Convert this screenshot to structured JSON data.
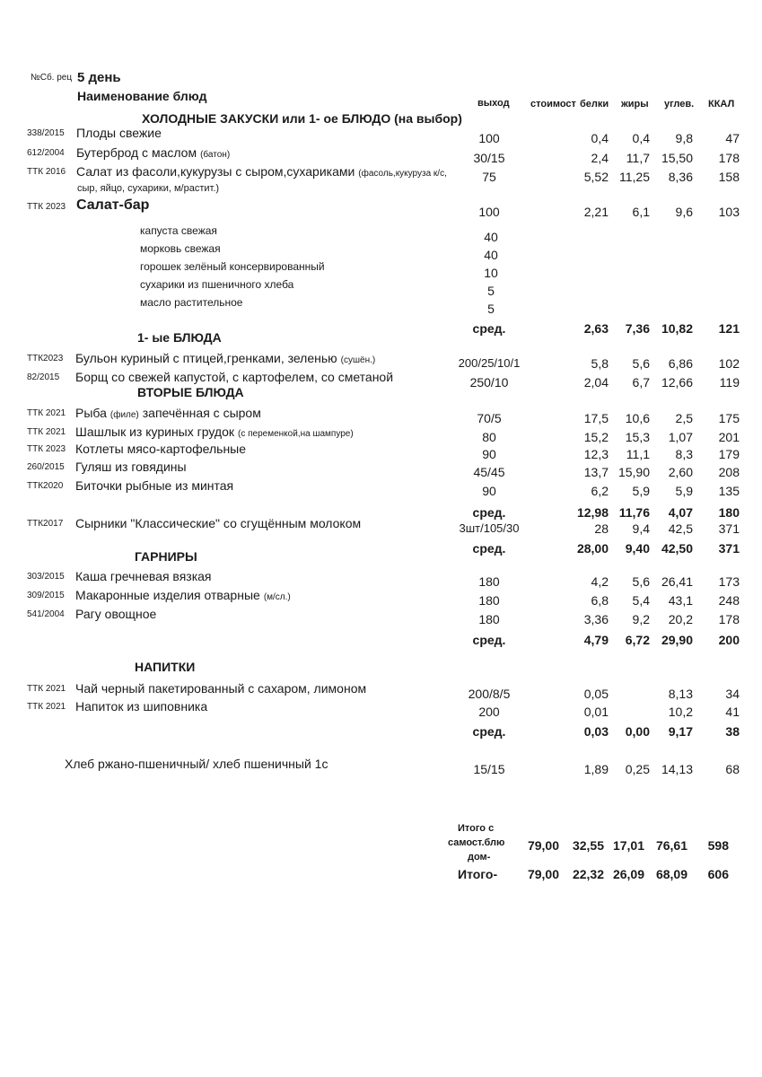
{
  "header": {
    "recipe_label": "№Сб. рец",
    "day": "5 день",
    "dish_col": "Наименование  блюд",
    "columns": [
      "выход",
      "стоимост",
      "белки",
      "жиры",
      "углев.",
      "ККАЛ"
    ]
  },
  "rows": [
    {
      "kind": "section",
      "name": "ХОЛОДНЫЕ  ЗАКУСКИ  или 1- ое БЛЮДО (на выбор)"
    },
    {
      "kind": "item",
      "code": "338/2015",
      "name": "Плоды свежие",
      "yield": "100",
      "protein": "0,4",
      "fat": "0,4",
      "carbs": "9,8",
      "kcal": "47"
    },
    {
      "kind": "item",
      "code": "612/2004",
      "name": "Бутерброд с маслом",
      "note": "(батон)",
      "yield": "30/15",
      "protein": "2,4",
      "fat": "11,7",
      "carbs": "15,50",
      "kcal": "178"
    },
    {
      "kind": "item",
      "code": "ТТК 2016",
      "name": "Салат из фасоли,кукурузы с сыром,сухариками",
      "note": "(фасоль,кукуруза к/с,",
      "yield": "75",
      "protein": "5,52",
      "fat": "11,25",
      "carbs": "8,36",
      "kcal": "158"
    },
    {
      "kind": "cont",
      "name": "сыр, яйцо, сухарики, м/растит.)"
    },
    {
      "kind": "item",
      "code": "ТТК 2023",
      "name": "Салат-бар",
      "bigname": true,
      "yield": "100",
      "protein": "2,21",
      "fat": "6,1",
      "carbs": "9,6",
      "kcal": "103"
    },
    {
      "kind": "sub",
      "name": "капуста свежая",
      "yield": "40"
    },
    {
      "kind": "sub",
      "name": "морковь свежая",
      "yield": "40"
    },
    {
      "kind": "sub",
      "name": "горошек зелёный консервированный",
      "yield": "10"
    },
    {
      "kind": "sub",
      "name": "сухарики из пшеничного хлеба",
      "yield": "5"
    },
    {
      "kind": "sub",
      "name": "масло растительное",
      "yield": "5"
    },
    {
      "kind": "avg",
      "yield": "сред.",
      "protein": "2,63",
      "fat": "7,36",
      "carbs": "10,82",
      "kcal": "121"
    },
    {
      "kind": "section",
      "name": "1- ые БЛЮДА"
    },
    {
      "kind": "item",
      "code": "ТТК2023",
      "name": "Бульон куриный с птицей,гренками, зеленью",
      "note": "(сушён.)",
      "yield": "200/25/10/1",
      "protein": "5,8",
      "fat": "5,6",
      "carbs": "6,86",
      "kcal": "102"
    },
    {
      "kind": "item",
      "code": "82/2015",
      "name": "Борщ со свежей капустой, с картофелем, со сметаной",
      "yield": "250/10",
      "protein": "2,04",
      "fat": "6,7",
      "carbs": "12,66",
      "kcal": "119"
    },
    {
      "kind": "section",
      "name": "ВТОРЫЕ  БЛЮДА"
    },
    {
      "kind": "item",
      "code": "ТТК 2021",
      "name": "Рыба",
      "note": "(филе)",
      "name2": "запечённая с сыром",
      "yield": "70/5",
      "protein": "17,5",
      "fat": "10,6",
      "carbs": "2,5",
      "kcal": "175"
    },
    {
      "kind": "item",
      "code": "ТТК 2021",
      "name": "Шашлык из куриных грудок",
      "note": "(с переменкой,на шампуре)",
      "yield": "80",
      "protein": "15,2",
      "fat": "15,3",
      "carbs": "1,07",
      "kcal": "201"
    },
    {
      "kind": "item",
      "code": "ТТК 2023",
      "name": "Котлеты  мясо-картофельные",
      "yield": "90",
      "protein": "12,3",
      "fat": "11,1",
      "carbs": "8,3",
      "kcal": "179"
    },
    {
      "kind": "item",
      "code": "260/2015",
      "name": "Гуляш из говядины",
      "yield": "45/45",
      "protein": "13,7",
      "fat": "15,90",
      "carbs": "2,60",
      "kcal": "208"
    },
    {
      "kind": "item",
      "code": "ТТК2020",
      "name": "Биточки рыбные из минтая",
      "yield": "90",
      "protein": "6,2",
      "fat": "5,9",
      "carbs": "5,9",
      "kcal": "135"
    },
    {
      "kind": "avg",
      "yield": "сред.",
      "protein": "12,98",
      "fat": "11,76",
      "carbs": "4,07",
      "kcal": "180"
    },
    {
      "kind": "item",
      "code": "ТТК2017",
      "name": "Сырники \"Классические\" со сгущённым молоком",
      "yield": "3шт/105/30",
      "protein": "28",
      "fat": "9,4",
      "carbs": "42,5",
      "kcal": "371"
    },
    {
      "kind": "avg",
      "yield": "сред.",
      "protein": "28,00",
      "fat": "9,40",
      "carbs": "42,50",
      "kcal": "371"
    },
    {
      "kind": "section",
      "name": "ГАРНИРЫ"
    },
    {
      "kind": "item",
      "code": "303/2015",
      "name": "Каша гречневая вязкая",
      "yield": "180",
      "protein": "4,2",
      "fat": "5,6",
      "carbs": "26,41",
      "kcal": "173"
    },
    {
      "kind": "item",
      "code": "309/2015",
      "name": "Макаронные изделия отварные",
      "note": "(м/сл.)",
      "yield": "180",
      "protein": "6,8",
      "fat": "5,4",
      "carbs": "43,1",
      "kcal": "248"
    },
    {
      "kind": "item",
      "code": "541/2004",
      "name": "Рагу овощное",
      "yield": "180",
      "protein": "3,36",
      "fat": "9,2",
      "carbs": "20,2",
      "kcal": "178"
    },
    {
      "kind": "avg",
      "yield": "сред.",
      "protein": "4,79",
      "fat": "6,72",
      "carbs": "29,90",
      "kcal": "200"
    },
    {
      "kind": "section",
      "name": "НАПИТКИ"
    },
    {
      "kind": "item",
      "code": "ТТК 2021",
      "name": "Чай черный пакетированный с сахаром, лимоном",
      "yield": "200/8/5",
      "protein": "0,05",
      "fat": "",
      "carbs": "8,13",
      "kcal": "34"
    },
    {
      "kind": "item",
      "code": "ТТК 2021",
      "name": "Напиток из шиповника",
      "yield": "200",
      "protein": "0,01",
      "fat": "",
      "carbs": "10,2",
      "kcal": "41"
    },
    {
      "kind": "avg",
      "yield": "сред.",
      "protein": "0,03",
      "fat": "0,00",
      "carbs": "9,17",
      "kcal": "38"
    },
    {
      "kind": "bread",
      "name": "Хлеб ржано-пшеничный/ хлеб пшеничный 1с",
      "yield": "15/15",
      "protein": "1,89",
      "fat": "0,25",
      "carbs": "14,13",
      "kcal": "68"
    }
  ],
  "totals": [
    {
      "label_lines": [
        "Итого с",
        "самост.блю",
        "дом-"
      ],
      "cost": "79,00",
      "protein": "32,55",
      "fat": "17,01",
      "carbs": "76,61",
      "kcal": "598"
    },
    {
      "label_lines": [
        "Итого-"
      ],
      "cost": "79,00",
      "protein": "22,32",
      "fat": "26,09",
      "carbs": "68,09",
      "kcal": "606"
    }
  ]
}
